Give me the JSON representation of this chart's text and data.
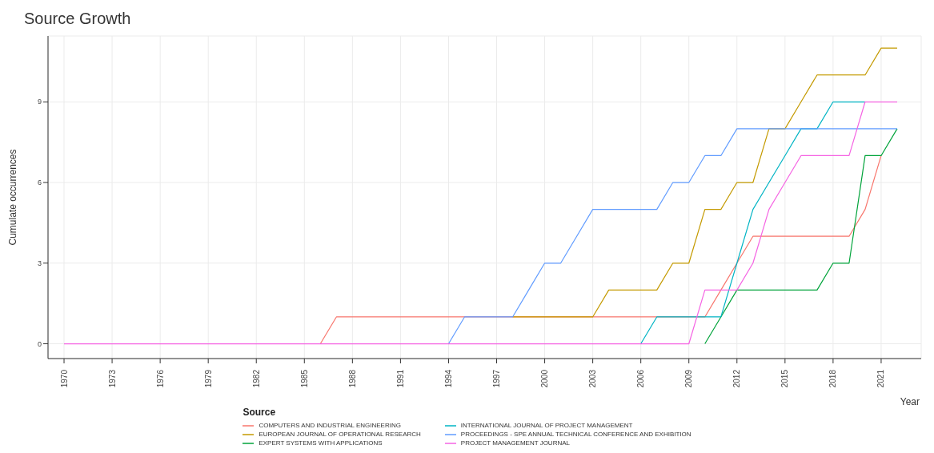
{
  "chart_data": {
    "type": "line",
    "title": "Source Growth",
    "xlabel": "Year",
    "ylabel": "Cumulate occurrences",
    "legend_title": "Source",
    "legend": "bottom",
    "grid": true,
    "marker": "none",
    "line_style": "solid",
    "x": [
      1970,
      1971,
      1972,
      1973,
      1974,
      1975,
      1976,
      1977,
      1978,
      1979,
      1980,
      1981,
      1982,
      1983,
      1984,
      1985,
      1986,
      1987,
      1988,
      1989,
      1990,
      1991,
      1992,
      1993,
      1994,
      1995,
      1996,
      1997,
      1998,
      1999,
      2000,
      2001,
      2002,
      2003,
      2004,
      2005,
      2006,
      2007,
      2008,
      2009,
      2010,
      2011,
      2012,
      2013,
      2014,
      2015,
      2016,
      2017,
      2018,
      2019,
      2020,
      2021,
      2022
    ],
    "xlim": [
      1969,
      2023.5
    ],
    "xticks": [
      1970,
      1973,
      1976,
      1979,
      1982,
      1985,
      1988,
      1991,
      1994,
      1997,
      2000,
      2003,
      2006,
      2009,
      2012,
      2015,
      2018,
      2021
    ],
    "ylim": [
      -0.55,
      11.45
    ],
    "yticks": [
      0,
      3,
      6,
      9
    ],
    "series": [
      {
        "name": "COMPUTERS AND INDUSTRIAL ENGINEERING",
        "color": "#f8766d",
        "values": [
          null,
          null,
          null,
          null,
          null,
          null,
          null,
          null,
          null,
          null,
          null,
          null,
          null,
          null,
          null,
          null,
          0,
          1,
          1,
          1,
          1,
          1,
          1,
          1,
          1,
          1,
          null,
          null,
          1,
          1,
          1,
          1,
          1,
          1,
          1,
          1,
          1,
          1,
          null,
          null,
          1,
          2,
          3,
          4,
          4,
          4,
          4,
          4,
          4,
          4,
          5,
          7,
          null
        ]
      },
      {
        "name": "EUROPEAN JOURNAL OF OPERATIONAL RESEARCH",
        "color": "#c49a00",
        "values": [
          null,
          null,
          null,
          null,
          null,
          null,
          null,
          null,
          null,
          null,
          null,
          null,
          null,
          null,
          null,
          null,
          null,
          null,
          null,
          null,
          null,
          null,
          null,
          null,
          null,
          null,
          null,
          null,
          1,
          1,
          1,
          1,
          1,
          1,
          2,
          2,
          2,
          2,
          3,
          3,
          5,
          5,
          6,
          6,
          8,
          8,
          9,
          10,
          10,
          10,
          10,
          11,
          11
        ]
      },
      {
        "name": "EXPERT SYSTEMS WITH APPLICATIONS",
        "color": "#00a33a",
        "values": [
          null,
          null,
          null,
          null,
          null,
          null,
          null,
          null,
          null,
          null,
          null,
          null,
          null,
          null,
          null,
          null,
          null,
          null,
          null,
          null,
          null,
          null,
          null,
          null,
          null,
          null,
          null,
          null,
          null,
          null,
          null,
          null,
          null,
          null,
          null,
          null,
          null,
          null,
          null,
          null,
          0,
          1,
          2,
          2,
          2,
          2,
          2,
          2,
          3,
          3,
          7,
          7,
          8
        ]
      },
      {
        "name": "INTERNATIONAL JOURNAL OF PROJECT MANAGEMENT",
        "color": "#00b4c4",
        "values": [
          null,
          null,
          null,
          null,
          null,
          null,
          null,
          null,
          null,
          null,
          null,
          null,
          null,
          null,
          null,
          null,
          null,
          null,
          null,
          null,
          null,
          null,
          null,
          null,
          null,
          null,
          null,
          null,
          null,
          null,
          null,
          null,
          null,
          null,
          null,
          null,
          0,
          1,
          null,
          null,
          1,
          1,
          3,
          5,
          6,
          7,
          8,
          8,
          9,
          9,
          9,
          null,
          null
        ]
      },
      {
        "name": "PROCEEDINGS - SPE ANNUAL TECHNICAL CONFERENCE AND EXHIBITION",
        "color": "#619cff",
        "values": [
          null,
          null,
          null,
          null,
          null,
          null,
          null,
          null,
          null,
          null,
          null,
          null,
          null,
          null,
          null,
          null,
          null,
          null,
          null,
          null,
          null,
          null,
          null,
          null,
          0,
          1,
          1,
          1,
          1,
          2,
          3,
          3,
          4,
          5,
          5,
          5,
          5,
          5,
          6,
          6,
          7,
          7,
          8,
          8,
          8,
          8,
          8,
          8,
          8,
          8,
          8,
          8,
          8
        ]
      },
      {
        "name": "PROJECT MANAGEMENT JOURNAL",
        "color": "#f564e3",
        "values": [
          0,
          0,
          0,
          0,
          0,
          0,
          0,
          0,
          0,
          0,
          0,
          0,
          0,
          0,
          0,
          0,
          0,
          0,
          0,
          0,
          0,
          0,
          0,
          0,
          0,
          0,
          0,
          0,
          0,
          0,
          0,
          0,
          0,
          0,
          0,
          0,
          0,
          0,
          0,
          0,
          2,
          2,
          2,
          3,
          5,
          6,
          7,
          7,
          7,
          7,
          9,
          9,
          9
        ]
      }
    ]
  }
}
